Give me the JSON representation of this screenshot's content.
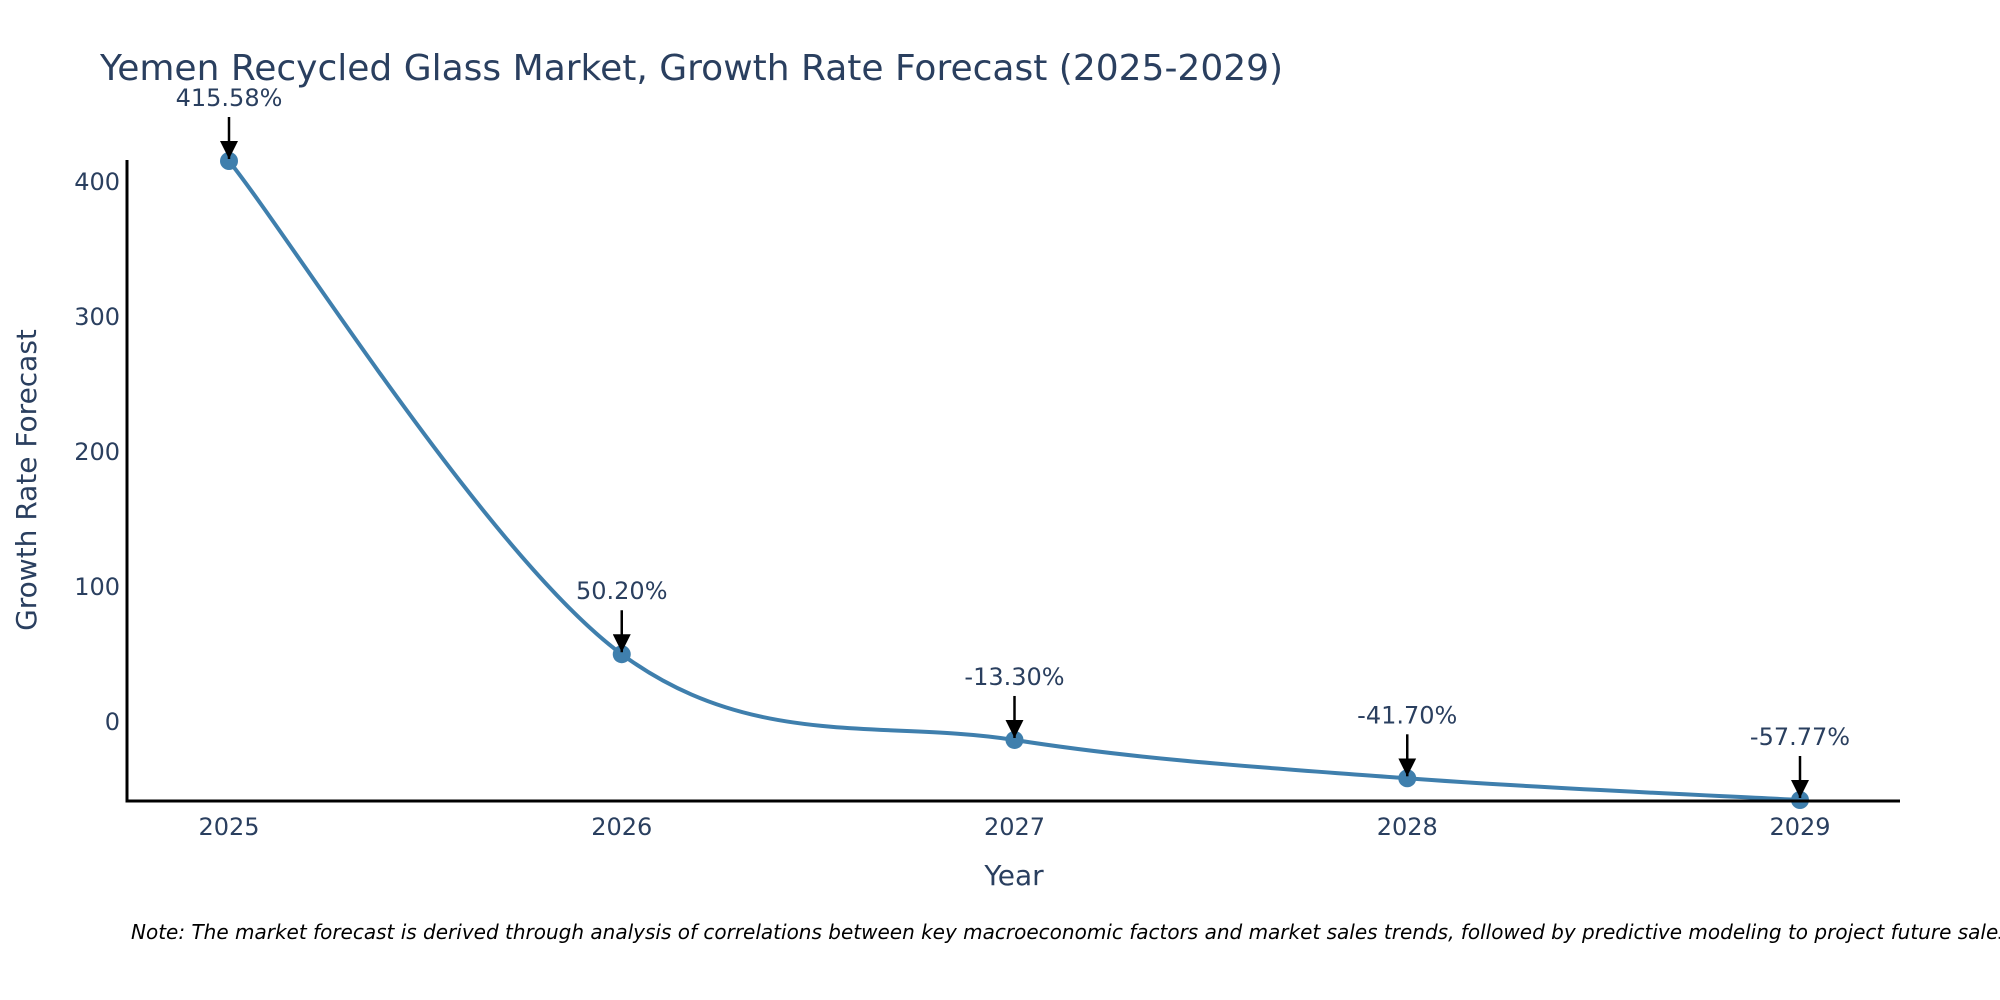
{
  "chart_data": {
    "type": "line",
    "title": "Yemen Recycled Glass Market, Growth Rate Forecast (2025-2029)",
    "xlabel": "Year",
    "ylabel": "Growth Rate Forecast",
    "categories": [
      "2025",
      "2026",
      "2027",
      "2028",
      "2029"
    ],
    "values": [
      415.58,
      50.2,
      -13.3,
      -41.7,
      -57.77
    ],
    "data_labels": [
      "415.58%",
      "50.20%",
      "-13.30%",
      "-41.70%",
      "-57.77%"
    ],
    "y_ticks": [
      0,
      100,
      200,
      300,
      400
    ],
    "ylim": [
      -57.77,
      415.58
    ],
    "grid": false,
    "series_color": "#3f7fad",
    "line_shape": "spline"
  },
  "note": "Note: The market forecast is derived through analysis of correlations between key macroeconomic factors and market sales trends, followed by predictive modeling to project future sales."
}
